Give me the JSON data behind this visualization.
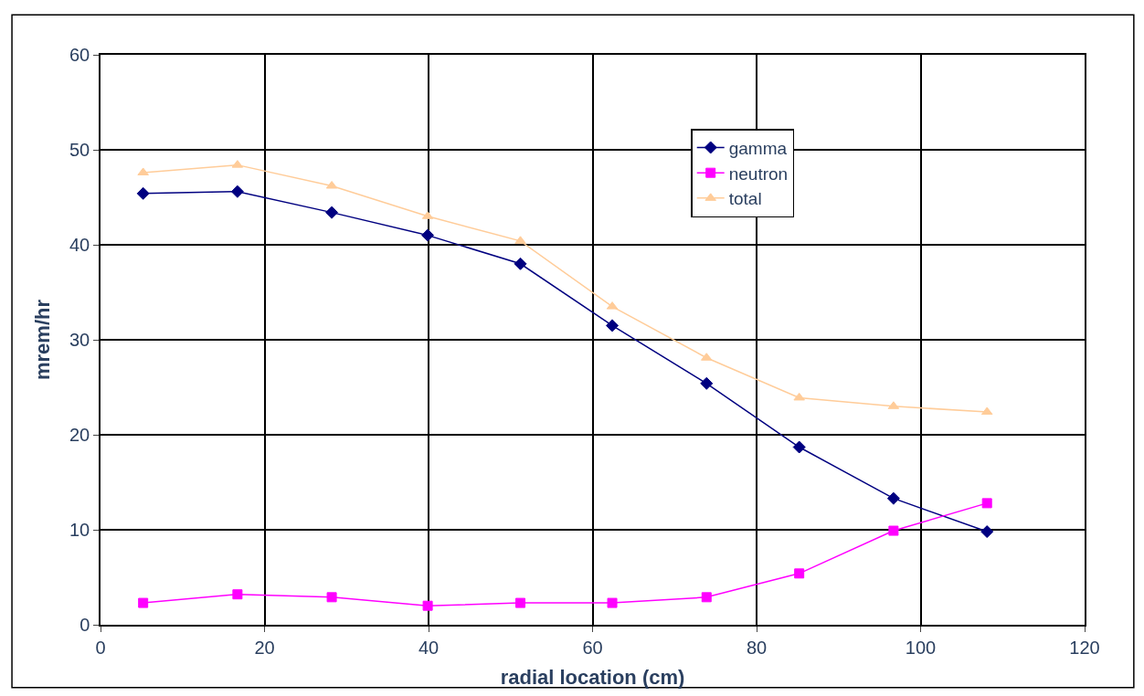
{
  "chart_data": {
    "type": "line",
    "xlabel": "radial location (cm)",
    "ylabel": "mrem/hr",
    "x": [
      5.2,
      16.7,
      28.2,
      39.9,
      51.2,
      62.4,
      73.9,
      85.2,
      96.7,
      108.1
    ],
    "series": [
      {
        "name": "gamma",
        "color": "#000080",
        "marker": "diamond",
        "values": [
          45.4,
          45.6,
          43.4,
          41.0,
          38.0,
          31.5,
          25.4,
          18.7,
          13.3,
          9.8
        ]
      },
      {
        "name": "neutron",
        "color": "#ff00ff",
        "marker": "square",
        "values": [
          2.3,
          3.2,
          2.9,
          2.0,
          2.3,
          2.3,
          2.9,
          5.4,
          9.9,
          12.8
        ]
      },
      {
        "name": "total",
        "color": "#ffcc99",
        "marker": "triangle",
        "values": [
          47.6,
          48.4,
          46.2,
          43.0,
          40.4,
          33.5,
          28.1,
          23.9,
          23.0,
          22.4
        ]
      }
    ],
    "xlim": [
      0,
      120
    ],
    "xticks": [
      0,
      20,
      40,
      60,
      80,
      100,
      120
    ],
    "ylim": [
      0,
      60
    ],
    "yticks": [
      0,
      10,
      20,
      30,
      40,
      50,
      60
    ],
    "grid": true,
    "legend": "top right",
    "line_style": "solid"
  }
}
